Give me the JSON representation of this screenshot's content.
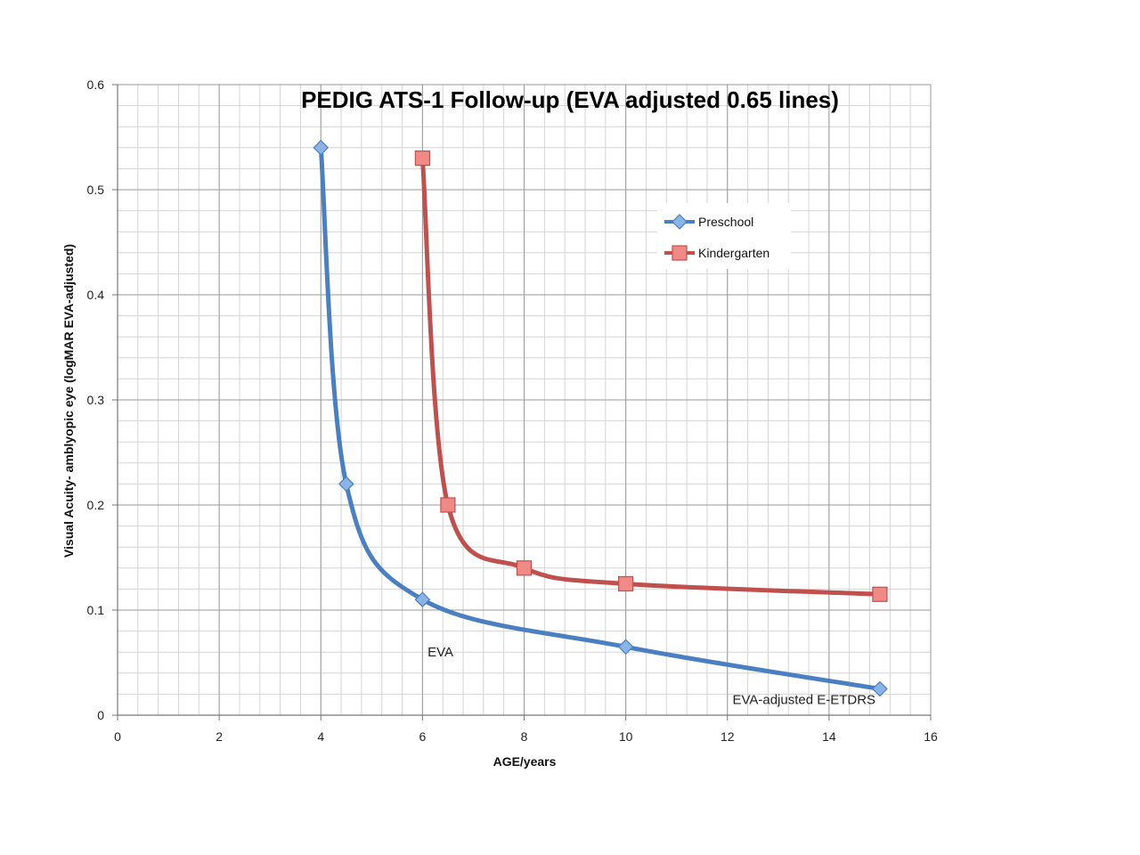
{
  "chart_data": {
    "type": "line",
    "title": "PEDIG ATS-1 Follow-up (EVA adjusted 0.65 lines)",
    "xlabel": "AGE/years",
    "ylabel": "Visual Acuity- amblyopic eye (logMAR EVA-adjusted)",
    "xlim": [
      0,
      16
    ],
    "ylim": [
      0,
      0.6
    ],
    "xticks": [
      "0",
      "2",
      "4",
      "6",
      "8",
      "10",
      "12",
      "14",
      "16"
    ],
    "yticks": [
      "0",
      "0.1",
      "0.2",
      "0.3",
      "0.4",
      "0.5",
      "0.6"
    ],
    "grid": true,
    "legend_position": "top-right",
    "smooth": true,
    "series": [
      {
        "name": "Preschool",
        "marker": "diamond",
        "color": "#4a7fc1",
        "marker_color": "#8ab4e8",
        "x": [
          4,
          4.5,
          6,
          10,
          15
        ],
        "y": [
          0.54,
          0.22,
          0.11,
          0.065,
          0.025
        ]
      },
      {
        "name": "Kindergarten",
        "marker": "square",
        "color": "#c0504d",
        "marker_color": "#f08a86",
        "x": [
          6,
          6.5,
          8,
          10,
          15
        ],
        "y": [
          0.53,
          0.2,
          0.14,
          0.125,
          0.115
        ]
      }
    ],
    "annotations": [
      {
        "text": "EVA",
        "x": 6.1,
        "y": 0.06
      },
      {
        "text": "EVA-adjusted E-ETDRS",
        "x": 12.1,
        "y": 0.015
      }
    ]
  }
}
